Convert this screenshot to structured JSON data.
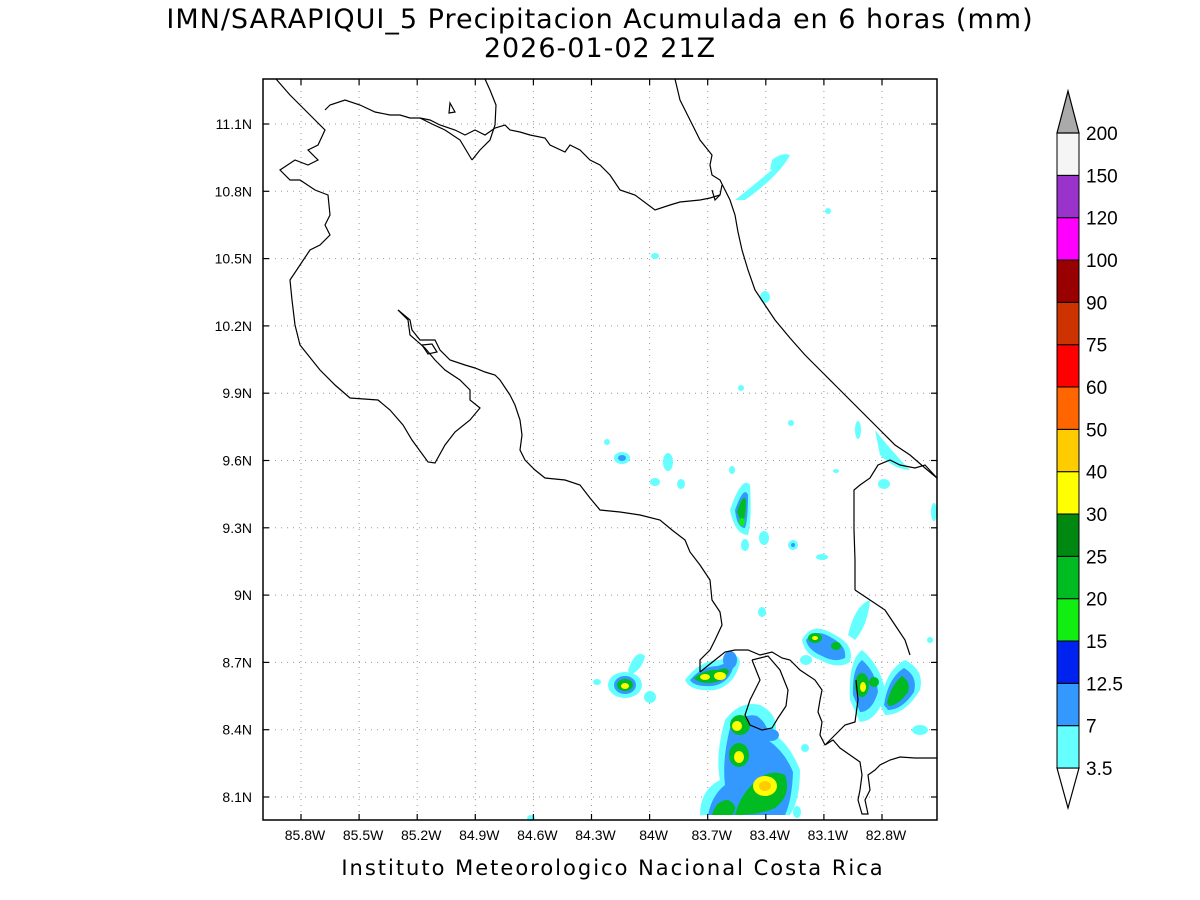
{
  "title": {
    "line1": "IMN/SARAPIQUI_5 Precipitacion Acumulada en 6 horas (mm)",
    "line2": "2026-01-02 21Z"
  },
  "credit": "Instituto Meteorologico Nacional Costa Rica",
  "axes": {
    "lat_ticks": [
      "11.1N",
      "10.8N",
      "10.5N",
      "10.2N",
      "9.9N",
      "9.6N",
      "9.3N",
      "9N",
      "8.7N",
      "8.4N",
      "8.1N"
    ],
    "lon_ticks": [
      "85.8W",
      "85.5W",
      "85.2W",
      "84.9W",
      "84.6W",
      "84.3W",
      "84W",
      "83.7W",
      "83.4W",
      "83.1W",
      "82.8W"
    ]
  },
  "colorbar": {
    "levels": [
      "3.5",
      "7",
      "12.5",
      "15",
      "20",
      "25",
      "30",
      "40",
      "50",
      "60",
      "75",
      "90",
      "100",
      "120",
      "150",
      "200"
    ],
    "colors": [
      "#66ffff",
      "#3399ff",
      "#0022ee",
      "#11ee11",
      "#00bb22",
      "#008811",
      "#ffff00",
      "#ffcc00",
      "#ff6600",
      "#ff0000",
      "#cc3300",
      "#990000",
      "#ff00ff",
      "#9933cc",
      "#f5f5f5",
      "#aaaaaa"
    ]
  }
}
